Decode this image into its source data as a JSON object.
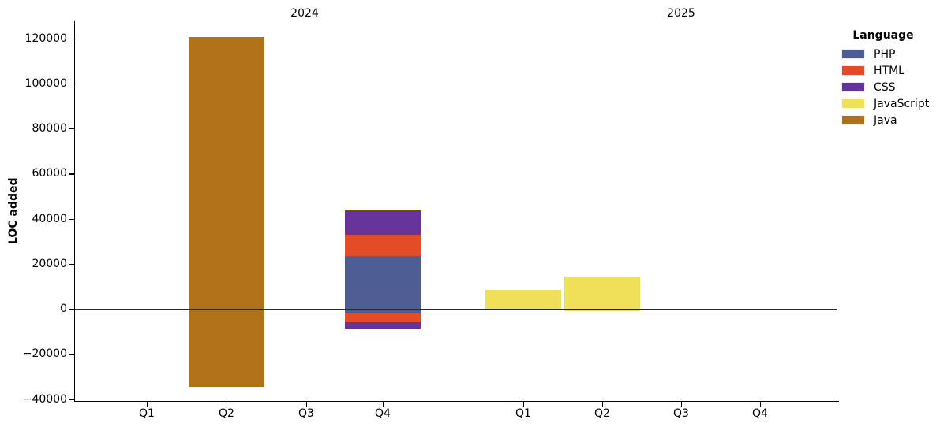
{
  "chart_data": {
    "type": "bar",
    "stacked": true,
    "orientation": "vertical",
    "title": "",
    "ylabel": "LOC added",
    "xlabel": "",
    "facets": [
      "2024",
      "2025"
    ],
    "categories": [
      "Q1",
      "Q2",
      "Q3",
      "Q4"
    ],
    "yticks": [
      120000,
      100000,
      80000,
      60000,
      40000,
      20000,
      0,
      -20000,
      -40000
    ],
    "ylim": [
      -41000,
      127500
    ],
    "grid": false,
    "legend": {
      "title": "Language",
      "position": "outside-upper-right",
      "entries": [
        {
          "label": "PHP",
          "color": "#4f5d95"
        },
        {
          "label": "HTML",
          "color": "#e34c26"
        },
        {
          "label": "CSS",
          "color": "#663399"
        },
        {
          "label": "JavaScript",
          "color": "#f1e05a"
        },
        {
          "label": "Java",
          "color": "#b07219"
        }
      ]
    },
    "bars": [
      {
        "facet": "2024",
        "category": "Q2",
        "segments": [
          {
            "language": "Java",
            "value": 120500
          },
          {
            "language": "Java",
            "value": -34500
          }
        ]
      },
      {
        "facet": "2024",
        "category": "Q4",
        "segments": [
          {
            "language": "PHP",
            "value": 23400
          },
          {
            "language": "HTML",
            "value": 9500
          },
          {
            "language": "CSS",
            "value": 10600
          },
          {
            "language": "JavaScript",
            "value": 400
          },
          {
            "language": "PHP",
            "value": -1600
          },
          {
            "language": "HTML",
            "value": -4400
          },
          {
            "language": "CSS",
            "value": -2600
          }
        ]
      },
      {
        "facet": "2025",
        "category": "Q1",
        "segments": [
          {
            "language": "JavaScript",
            "value": 8300
          }
        ]
      },
      {
        "facet": "2025",
        "category": "Q2",
        "segments": [
          {
            "language": "JavaScript",
            "value": 14400
          },
          {
            "language": "JavaScript",
            "value": -1000
          }
        ]
      }
    ],
    "colors": {
      "axis_text": "#000000",
      "spine": "#000000",
      "zero_line": "#2b2b2b",
      "background": "#ffffff"
    }
  }
}
